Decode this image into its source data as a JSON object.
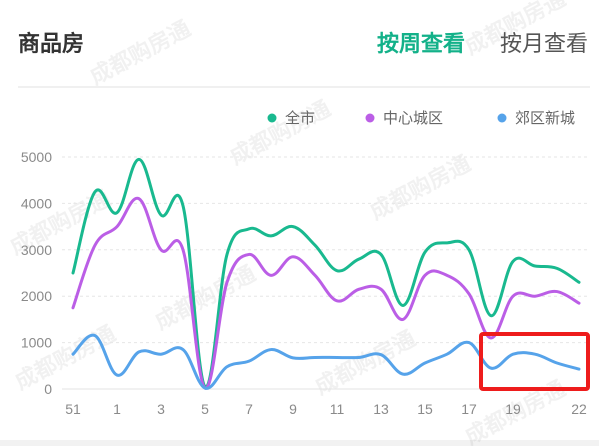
{
  "header": {
    "title": "商品房",
    "tabs": [
      {
        "label": "按周查看",
        "active": true
      },
      {
        "label": "按月查看",
        "active": false
      }
    ]
  },
  "watermark": "成都购房通",
  "colors": {
    "accent": "#13b189",
    "series": [
      "#19b98f",
      "#bb5ee6",
      "#56a3ea"
    ],
    "highlight_box": "#ee1c1c"
  },
  "chart_data": {
    "type": "line",
    "x": [
      "51",
      "52",
      "1",
      "2",
      "3",
      "4",
      "5",
      "6",
      "7",
      "8",
      "9",
      "10",
      "11",
      "12",
      "13",
      "14",
      "15",
      "16",
      "17",
      "18",
      "19",
      "20",
      "21",
      "22"
    ],
    "x_tick_labels": [
      "51",
      "1",
      "3",
      "5",
      "7",
      "9",
      "11",
      "13",
      "15",
      "17",
      "19",
      "22"
    ],
    "ylim": [
      0,
      5000
    ],
    "y_ticks": [
      0,
      1000,
      2000,
      3000,
      4000,
      5000
    ],
    "grid": true,
    "legend_position": "top-right",
    "series": [
      {
        "name": "全市",
        "values": [
          2500,
          4250,
          3800,
          4950,
          3750,
          3950,
          50,
          2900,
          3450,
          3300,
          3500,
          3100,
          2550,
          2800,
          2900,
          1800,
          2950,
          3150,
          3000,
          1580,
          2750,
          2650,
          2600,
          2300
        ]
      },
      {
        "name": "中心城区",
        "values": [
          1750,
          3100,
          3500,
          4100,
          3000,
          3000,
          20,
          2300,
          2900,
          2450,
          2850,
          2450,
          1900,
          2150,
          2150,
          1500,
          2450,
          2450,
          2050,
          1100,
          2000,
          2000,
          2100,
          1850
        ]
      },
      {
        "name": "郊区新城",
        "values": [
          750,
          1150,
          300,
          800,
          750,
          850,
          20,
          480,
          600,
          850,
          670,
          680,
          680,
          680,
          740,
          320,
          560,
          750,
          1000,
          450,
          750,
          750,
          560,
          430
        ]
      }
    ]
  }
}
